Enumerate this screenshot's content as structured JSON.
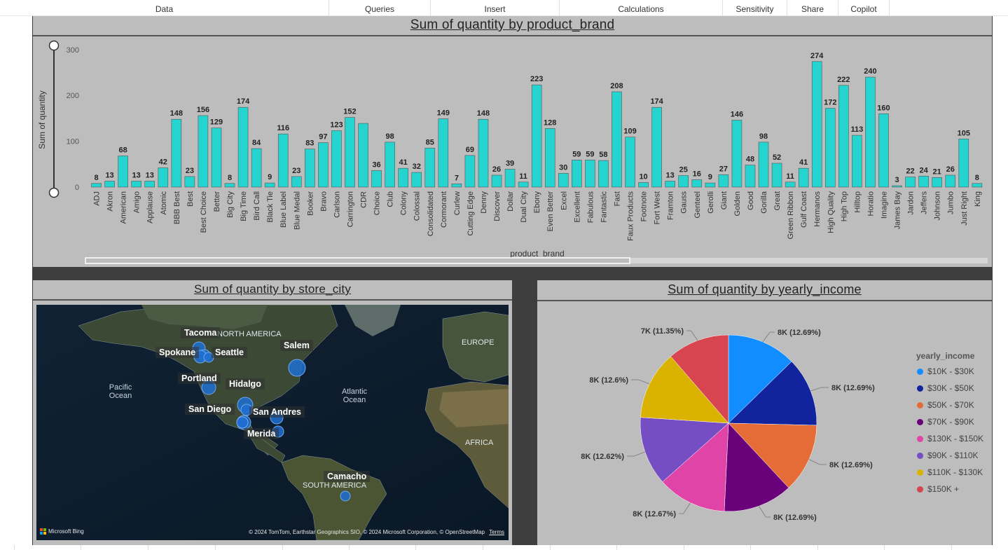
{
  "ribbon": {
    "tabs": [
      "Data",
      "Queries",
      "Insert",
      "Calculations",
      "Sensitivity",
      "Share",
      "Copilot"
    ]
  },
  "bar_panel": {
    "title": "Sum of quantity by product_brand"
  },
  "map_panel": {
    "title": "Sum of quantity by store_city",
    "cities": [
      "Tacoma",
      "Spokane",
      "Seattle",
      "Salem",
      "Portland",
      "Hidalgo",
      "San Diego",
      "San Andres",
      "Merida",
      "Camacho"
    ],
    "region_labels": [
      "NORTH AMERICA",
      "SOUTH AMERICA",
      "EUROPE",
      "AFRICA",
      "Pacific Ocean",
      "Atlantic Ocean"
    ],
    "attribution": "© 2024 TomTom, Earthstar Geographics SIO, © 2024 Microsoft Corporation, © OpenStreetMap",
    "terms_link": "Terms",
    "bing_logo": "Microsoft Bing",
    "bubble_color": "#1f6fd1"
  },
  "pie_panel": {
    "title": "Sum of quantity by yearly_income",
    "legend_title": "yearly_income"
  },
  "chart_data": [
    {
      "type": "bar",
      "title": "Sum of quantity by product_brand",
      "xlabel": "product_brand",
      "ylabel": "Sum of quantity",
      "ylim": [
        0,
        300
      ],
      "yticks": [
        0,
        100,
        200,
        300
      ],
      "bar_color": "#26d4cf",
      "categories": [
        "ADJ",
        "Akron",
        "American",
        "Amigo",
        "Applause",
        "Atomic",
        "BBB Best",
        "Best",
        "Best Choice",
        "Better",
        "Big City",
        "Big Time",
        "Bird Call",
        "Black Tie",
        "Blue Label",
        "Blue Medal",
        "Booker",
        "Bravo",
        "Carlson",
        "Carrington",
        "CDR",
        "Choice",
        "Club",
        "Colony",
        "Colossal",
        "Consolidated",
        "Cormorant",
        "Curlew",
        "Cutting Edge",
        "Denny",
        "Discover",
        "Dollar",
        "Dual City",
        "Ebony",
        "Even Better",
        "Excel",
        "Excellent",
        "Fabulous",
        "Fantastic",
        "Fast",
        "Faux Products",
        "Footnote",
        "Fort West",
        "Framton",
        "Gauss",
        "Genteel",
        "Gerolli",
        "Giant",
        "Golden",
        "Good",
        "Gorilla",
        "Great",
        "Green Ribbon",
        "Gulf Coast",
        "Hermanos",
        "High Quality",
        "High Top",
        "Hilltop",
        "Horatio",
        "Imagine",
        "James Bay",
        "Jardon",
        "Jeffers",
        "Johnson",
        "Jumbo",
        "Just Right",
        "King"
      ],
      "values": [
        8,
        13,
        68,
        13,
        13,
        42,
        148,
        23,
        156,
        129,
        8,
        174,
        84,
        9,
        116,
        23,
        83,
        97,
        123,
        152,
        139,
        36,
        98,
        41,
        32,
        85,
        149,
        7,
        69,
        148,
        26,
        39,
        11,
        223,
        128,
        30,
        59,
        59,
        58,
        208,
        109,
        10,
        174,
        13,
        25,
        16,
        9,
        27,
        146,
        48,
        98,
        52,
        11,
        41,
        274,
        172,
        222,
        113,
        240,
        160,
        3,
        22,
        24,
        21,
        26,
        105,
        8
      ],
      "labels": [
        "8",
        "13",
        "68",
        "13",
        "13",
        "42",
        "148",
        "23",
        "156",
        "129",
        "8",
        "174",
        "84",
        "9",
        "116",
        "23",
        "83",
        "97",
        "123",
        "152",
        "",
        "36",
        "98",
        "41",
        "32",
        "85",
        "149",
        "7",
        "69",
        "148",
        "26",
        "39",
        "11",
        "223",
        "128",
        "30",
        "59",
        "59",
        "58",
        "208",
        "109",
        "10",
        "174",
        "13",
        "25",
        "16",
        "9",
        "27",
        "146",
        "48",
        "98",
        "52",
        "11",
        "41",
        "274",
        "172",
        "222",
        "113",
        "240",
        "160",
        "3",
        "22",
        "24",
        "21",
        "26",
        "105",
        "8"
      ]
    },
    {
      "type": "pie",
      "title": "Sum of quantity by yearly_income",
      "legend_title": "yearly_income",
      "legend_position": "right",
      "slices": [
        {
          "name": "$10K - $30K",
          "percent": 12.69,
          "label": "8K (12.69%)",
          "color": "#118dff"
        },
        {
          "name": "$30K - $50K",
          "percent": 12.69,
          "label": "8K (12.69%)",
          "color": "#12239e"
        },
        {
          "name": "$50K - $70K",
          "percent": 12.69,
          "label": "8K (12.69%)",
          "color": "#e66c37"
        },
        {
          "name": "$70K - $90K",
          "percent": 12.69,
          "label": "8K (12.69%)",
          "color": "#6b007b"
        },
        {
          "name": "$130K - $150K",
          "percent": 12.67,
          "label": "8K (12.67%)",
          "color": "#e044a7"
        },
        {
          "name": "$90K - $110K",
          "percent": 12.62,
          "label": "8K (12.62%)",
          "color": "#744ec2"
        },
        {
          "name": "$110K - $130K",
          "percent": 12.6,
          "label": "8K (12.6%)",
          "color": "#d9b300"
        },
        {
          "name": "$150K +",
          "percent": 11.35,
          "label": "7K (11.35%)",
          "color": "#d64550"
        }
      ]
    }
  ]
}
